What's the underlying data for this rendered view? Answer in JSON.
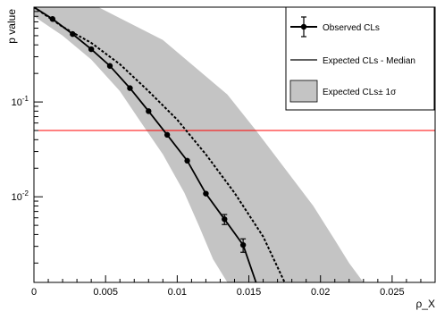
{
  "chart_data": {
    "type": "line",
    "title": "",
    "xlabel": "ρ_X",
    "ylabel": "p value",
    "xlim": [
      0,
      0.028
    ],
    "ylim": [
      0.00125,
      1
    ],
    "y_scale": "log",
    "grid": false,
    "legend_position": "top-right",
    "x_ticks": [
      {
        "value": 0,
        "label": "0"
      },
      {
        "value": 0.005,
        "label": "0.005"
      },
      {
        "value": 0.01,
        "label": "0.01"
      },
      {
        "value": 0.015,
        "label": "0.015"
      },
      {
        "value": 0.02,
        "label": "0.02"
      },
      {
        "value": 0.025,
        "label": "0.025"
      }
    ],
    "y_major_ticks": [
      {
        "value": 0.1,
        "label": "10",
        "exponent": "-1"
      },
      {
        "value": 0.01,
        "label": "10",
        "exponent": "-2"
      }
    ],
    "series": [
      {
        "name": "Observed CLs",
        "style": "solid-markers-errorbars",
        "color": "#000000",
        "x": [
          0,
          0.0013,
          0.0027,
          0.004,
          0.0053,
          0.0067,
          0.008,
          0.0093,
          0.0107,
          0.012,
          0.0133,
          0.0146,
          0.0155
        ],
        "y": [
          1.0,
          0.75,
          0.52,
          0.36,
          0.24,
          0.14,
          0.08,
          0.045,
          0.024,
          0.0108,
          0.0058,
          0.0031,
          0.00125
        ],
        "y_err": [
          0,
          0,
          0,
          0,
          0,
          0,
          0,
          0,
          0,
          0,
          0.0007,
          0.0005,
          0
        ]
      },
      {
        "name": "Expected CLs - Median",
        "style": "dashed",
        "color": "#000000",
        "x": [
          0,
          0.002,
          0.004,
          0.006,
          0.008,
          0.01,
          0.012,
          0.014,
          0.016,
          0.0175
        ],
        "y": [
          1.0,
          0.62,
          0.42,
          0.25,
          0.13,
          0.065,
          0.028,
          0.011,
          0.0038,
          0.00125
        ]
      },
      {
        "name": "Expected CLs± 1σ",
        "style": "band",
        "color": "#c4c4c4",
        "upper": {
          "x": [
            0.0045,
            0.0065,
            0.009,
            0.011,
            0.0135,
            0.0155,
            0.0175,
            0.0195,
            0.021,
            0.022,
            0.023
          ],
          "y": [
            1.0,
            0.7,
            0.45,
            0.25,
            0.12,
            0.05,
            0.02,
            0.008,
            0.0035,
            0.002,
            0.00125
          ]
        },
        "lower": {
          "x": [
            0,
            0.002,
            0.004,
            0.006,
            0.0075,
            0.009,
            0.0105,
            0.0115,
            0.0125,
            0.0135
          ],
          "y": [
            0.8,
            0.5,
            0.28,
            0.13,
            0.06,
            0.028,
            0.011,
            0.005,
            0.0022,
            0.00125
          ]
        }
      }
    ],
    "reference_line": {
      "y": 0.05,
      "color": "#ff0000"
    }
  }
}
